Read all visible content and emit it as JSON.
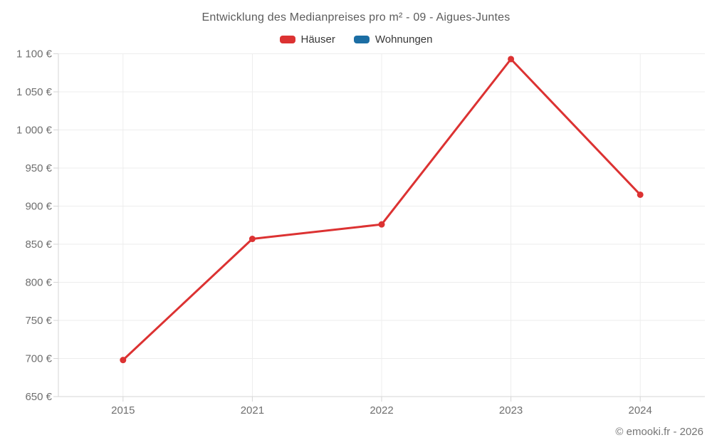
{
  "title": "Entwicklung des Medianpreises pro m² - 09 - Aigues-Juntes",
  "footer": "© emooki.fr - 2026",
  "colors": {
    "haeuser": "#dc3232",
    "wohnungen": "#1c6ea4",
    "grid": "#ededed",
    "axis": "#d6d6d6",
    "tick_label": "#6f6f6f",
    "title_text": "#5c5c5c",
    "legend_text": "#383838",
    "footer_text": "#757575"
  },
  "chart_data": {
    "type": "line",
    "title": "Entwicklung des Medianpreises pro m² - 09 - Aigues-Juntes",
    "categories": [
      "2015",
      "2021",
      "2022",
      "2023",
      "2024"
    ],
    "series": [
      {
        "name": "Häuser",
        "color": "#dc3232",
        "values": [
          698,
          857,
          876,
          1093,
          915
        ]
      },
      {
        "name": "Wohnungen",
        "color": "#1c6ea4",
        "values": []
      }
    ],
    "xlabel": "",
    "ylabel": "",
    "ylim": [
      650,
      1100
    ],
    "ytick_step": 50,
    "ytick_suffix": "€",
    "ytick_format": "space-thousands",
    "grid": true,
    "legend_position": "top"
  }
}
